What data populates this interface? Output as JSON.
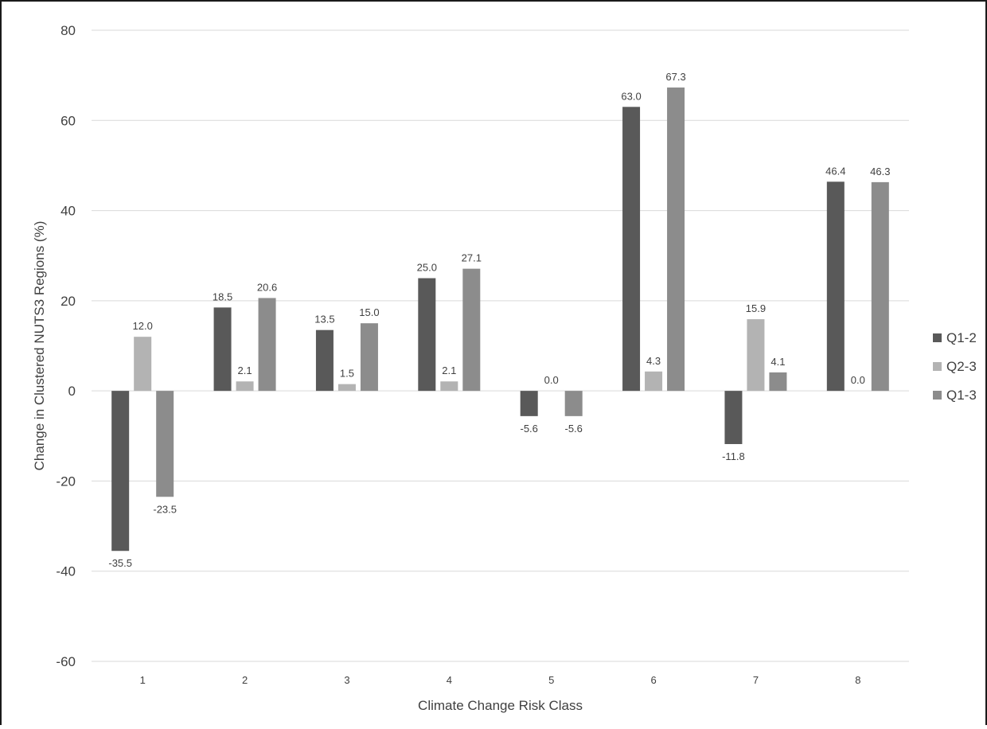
{
  "chart_data": {
    "type": "bar",
    "xlabel": "Climate Change Risk Class",
    "ylabel": "Change in Clustered NUTS3 Regions (%)",
    "categories": [
      "1",
      "2",
      "3",
      "4",
      "5",
      "6",
      "7",
      "8"
    ],
    "ylim": [
      -60,
      80
    ],
    "yticks": [
      80,
      60,
      40,
      20,
      0,
      -20,
      -40,
      -60
    ],
    "grid": true,
    "legend_position": "right",
    "series": [
      {
        "name": "Q1-2",
        "color": "#595959",
        "values": [
          -35.5,
          18.5,
          13.5,
          25.0,
          -5.6,
          63.0,
          -11.8,
          46.4
        ],
        "labels": [
          "-35.5",
          "18.5",
          "13.5",
          "25.0",
          "-5.6",
          "63.0",
          "-11.8",
          "46.4"
        ]
      },
      {
        "name": "Q2-3",
        "color": "#b3b3b3",
        "values": [
          12.0,
          2.1,
          1.5,
          2.1,
          0.0,
          4.3,
          15.9,
          0.0
        ],
        "labels": [
          "12.0",
          "2.1",
          "1.5",
          "2.1",
          "0.0",
          "4.3",
          "15.9",
          "0.0"
        ]
      },
      {
        "name": "Q1-3",
        "color": "#8c8c8c",
        "values": [
          -23.5,
          20.6,
          15.0,
          27.1,
          -5.6,
          67.3,
          4.1,
          46.3
        ],
        "labels": [
          "-23.5",
          "20.6",
          "15.0",
          "27.1",
          "-5.6",
          "67.3",
          "4.1",
          "46.3"
        ]
      }
    ]
  }
}
